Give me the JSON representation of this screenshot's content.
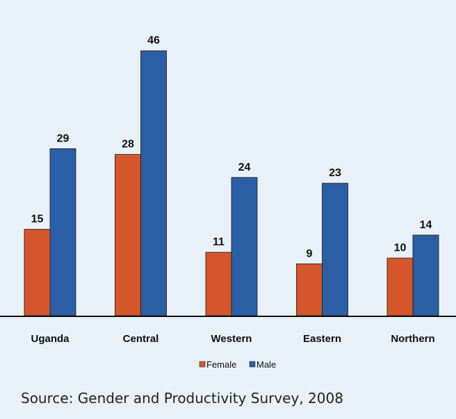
{
  "chart_data": {
    "type": "bar",
    "title": "",
    "xlabel": "",
    "ylabel": "",
    "categories": [
      "Uganda",
      "Central",
      "Western",
      "Eastern",
      "Northern"
    ],
    "series": [
      {
        "name": "Female",
        "color": "#d4562a",
        "values": [
          15,
          28,
          11,
          9,
          10
        ]
      },
      {
        "name": "Male",
        "color": "#2b5fa5",
        "values": [
          29,
          46,
          24,
          23,
          14
        ]
      }
    ],
    "ylim": [
      0,
      50
    ],
    "grid": false,
    "legend_position": "bottom-center",
    "data_labels": true
  },
  "source": "Source: Gender and Productivity Survey, 2008"
}
